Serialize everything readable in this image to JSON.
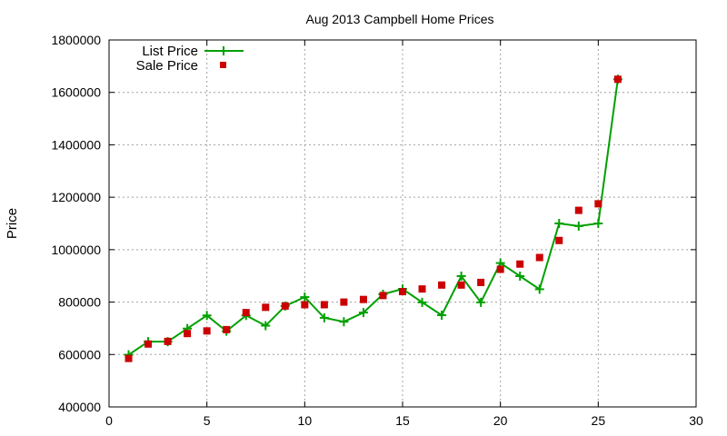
{
  "chart_data": {
    "type": "line",
    "title": "Aug 2013 Campbell Home Prices",
    "xlabel": "",
    "ylabel": "Price",
    "xlim": [
      0,
      30
    ],
    "ylim": [
      400000,
      1800000
    ],
    "x_ticks": [
      0,
      5,
      10,
      15,
      20,
      25,
      30
    ],
    "y_ticks": [
      400000,
      600000,
      800000,
      1000000,
      1200000,
      1400000,
      1600000,
      1800000
    ],
    "grid": true,
    "legend_position": "top-left",
    "series": [
      {
        "name": "List Price",
        "style": "line-plus",
        "color": "#00a000",
        "x": [
          1,
          2,
          3,
          4,
          5,
          6,
          7,
          8,
          9,
          10,
          11,
          12,
          13,
          14,
          15,
          16,
          17,
          18,
          19,
          20,
          21,
          22,
          23,
          24,
          25,
          26
        ],
        "values": [
          599000,
          649000,
          649000,
          699000,
          749000,
          689000,
          749000,
          710000,
          785000,
          819000,
          740000,
          725000,
          760000,
          830000,
          850000,
          799000,
          750000,
          899000,
          799000,
          949000,
          899000,
          849000,
          1100000,
          1090000,
          1100000,
          1650000
        ]
      },
      {
        "name": "Sale Price",
        "style": "square",
        "color": "#cc0000",
        "x": [
          1,
          2,
          3,
          4,
          5,
          6,
          7,
          8,
          9,
          10,
          11,
          12,
          13,
          14,
          15,
          16,
          17,
          18,
          19,
          20,
          21,
          22,
          23,
          24,
          25,
          26
        ],
        "values": [
          585000,
          640000,
          650000,
          680000,
          690000,
          695000,
          760000,
          780000,
          785000,
          790000,
          790000,
          800000,
          810000,
          825000,
          840000,
          850000,
          865000,
          865000,
          875000,
          925000,
          945000,
          970000,
          1035000,
          1150000,
          1175000,
          1650000
        ]
      }
    ]
  }
}
